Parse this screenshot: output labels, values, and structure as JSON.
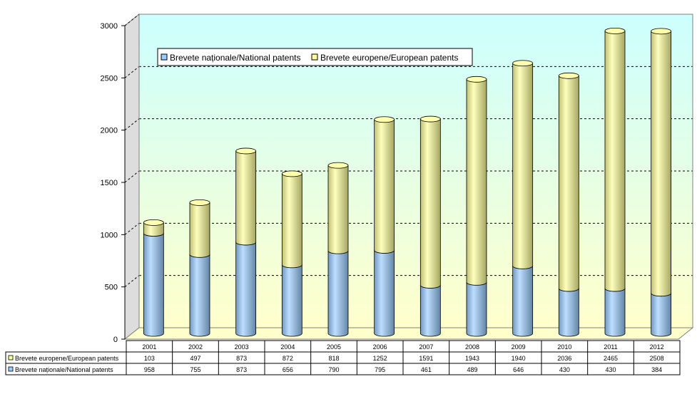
{
  "chart_data": {
    "type": "bar",
    "stacked": true,
    "style": "3d-cylinder",
    "title": "",
    "xlabel": "",
    "ylabel": "",
    "categories": [
      "2001",
      "2002",
      "2003",
      "2004",
      "2005",
      "2006",
      "2007",
      "2008",
      "2009",
      "2010",
      "2011",
      "2012"
    ],
    "series": [
      {
        "name": "Brevete naționale/National patents",
        "color": "#99ccff",
        "values": [
          958,
          755,
          873,
          656,
          790,
          795,
          461,
          489,
          646,
          430,
          430,
          384
        ]
      },
      {
        "name": "Brevete europene/European patents",
        "color": "#ffff99",
        "values": [
          103,
          497,
          873,
          872,
          818,
          1252,
          1591,
          1943,
          1940,
          2036,
          2465,
          2508
        ]
      }
    ],
    "ylim": [
      0,
      3000
    ],
    "yticks": [
      0,
      500,
      1000,
      1500,
      2000,
      2500,
      3000
    ],
    "grid": true,
    "legend": "top-left",
    "data_table": true,
    "table_rows": [
      {
        "label": "Brevete europene/European patents",
        "series_index": 1,
        "cells": [
          "103",
          "497",
          "873",
          "872",
          "818",
          "1252",
          "1591",
          "1943",
          "1940",
          "2036",
          "2465",
          "2508"
        ]
      },
      {
        "label": "Brevete naționale/National patents",
        "series_index": 0,
        "cells": [
          "958",
          "755",
          "873",
          "656",
          "790",
          "795",
          "461",
          "489",
          "646",
          "430",
          "430",
          "384"
        ]
      }
    ],
    "colors": {
      "wall_top": "#ccffff",
      "wall_bottom": "#ffffcc",
      "floor": "#ffffcc"
    }
  }
}
